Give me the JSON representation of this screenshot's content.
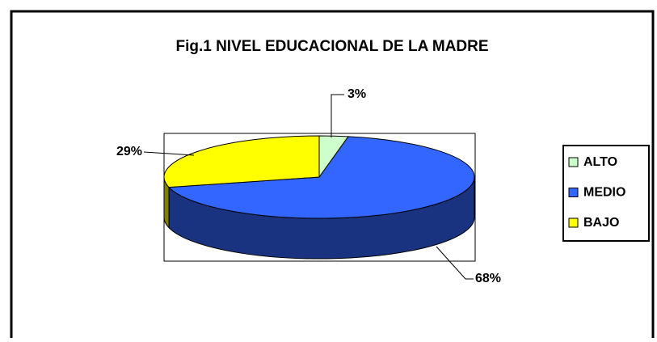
{
  "chart_data": {
    "type": "pie",
    "title": "Fig.1 NIVEL EDUCACIONAL DE LA MADRE",
    "categories": [
      "ALTO",
      "MEDIO",
      "BAJO"
    ],
    "values": [
      3,
      68,
      29
    ],
    "value_labels": [
      "3%",
      "68%",
      "29%"
    ],
    "colors": [
      "#ccffcc",
      "#3366ff",
      "#ffff00"
    ],
    "legend": "right"
  }
}
